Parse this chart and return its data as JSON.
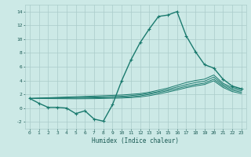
{
  "title": "",
  "xlabel": "Humidex (Indice chaleur)",
  "background_color": "#cce9e6",
  "grid_color": "#aaccca",
  "line_color": "#1a7a6e",
  "xlim": [
    -0.5,
    23.5
  ],
  "ylim": [
    -3.0,
    15.0
  ],
  "xticks": [
    0,
    1,
    2,
    3,
    4,
    5,
    6,
    7,
    8,
    9,
    10,
    11,
    12,
    13,
    14,
    15,
    16,
    17,
    18,
    19,
    20,
    21,
    22,
    23
  ],
  "yticks": [
    -2,
    0,
    2,
    4,
    6,
    8,
    10,
    12,
    14
  ],
  "series": [
    {
      "x": [
        0,
        1,
        2,
        3,
        4,
        5,
        6,
        7,
        8,
        9,
        10,
        11,
        12,
        13,
        14,
        15,
        16,
        17,
        18,
        19,
        20,
        21,
        22,
        23
      ],
      "y": [
        1.4,
        0.7,
        0.1,
        0.1,
        0.0,
        -0.8,
        -0.4,
        -1.6,
        -1.9,
        0.5,
        4.0,
        7.0,
        9.5,
        11.5,
        13.3,
        13.5,
        14.0,
        10.5,
        8.2,
        6.3,
        5.8,
        4.2,
        3.2,
        2.8
      ],
      "marker": true
    },
    {
      "x": [
        0,
        1,
        2,
        3,
        4,
        5,
        6,
        7,
        8,
        9,
        10,
        11,
        12,
        13,
        14,
        15,
        16,
        17,
        18,
        19,
        20,
        21,
        22,
        23
      ],
      "y": [
        1.4,
        1.45,
        1.5,
        1.55,
        1.6,
        1.65,
        1.7,
        1.75,
        1.8,
        1.85,
        1.9,
        2.0,
        2.1,
        2.3,
        2.6,
        2.9,
        3.3,
        3.7,
        4.0,
        4.2,
        4.8,
        3.6,
        3.0,
        2.7
      ],
      "marker": false
    },
    {
      "x": [
        0,
        1,
        2,
        3,
        4,
        5,
        6,
        7,
        8,
        9,
        10,
        11,
        12,
        13,
        14,
        15,
        16,
        17,
        18,
        19,
        20,
        21,
        22,
        23
      ],
      "y": [
        1.4,
        1.43,
        1.46,
        1.49,
        1.52,
        1.55,
        1.58,
        1.61,
        1.64,
        1.67,
        1.72,
        1.82,
        1.95,
        2.15,
        2.4,
        2.7,
        3.05,
        3.4,
        3.7,
        3.9,
        4.5,
        3.4,
        2.8,
        2.5
      ],
      "marker": false
    },
    {
      "x": [
        0,
        1,
        2,
        3,
        4,
        5,
        6,
        7,
        8,
        9,
        10,
        11,
        12,
        13,
        14,
        15,
        16,
        17,
        18,
        19,
        20,
        21,
        22,
        23
      ],
      "y": [
        1.4,
        1.41,
        1.42,
        1.43,
        1.44,
        1.45,
        1.47,
        1.49,
        1.52,
        1.55,
        1.58,
        1.65,
        1.78,
        2.0,
        2.25,
        2.52,
        2.82,
        3.15,
        3.42,
        3.62,
        4.2,
        3.2,
        2.6,
        2.3
      ],
      "marker": false
    },
    {
      "x": [
        0,
        1,
        2,
        3,
        4,
        5,
        6,
        7,
        8,
        9,
        10,
        11,
        12,
        13,
        14,
        15,
        16,
        17,
        18,
        19,
        20,
        21,
        22,
        23
      ],
      "y": [
        1.4,
        1.39,
        1.38,
        1.37,
        1.36,
        1.35,
        1.36,
        1.37,
        1.4,
        1.43,
        1.46,
        1.52,
        1.62,
        1.8,
        2.05,
        2.32,
        2.62,
        2.95,
        3.22,
        3.42,
        3.95,
        3.0,
        2.4,
        2.1
      ],
      "marker": false
    }
  ]
}
